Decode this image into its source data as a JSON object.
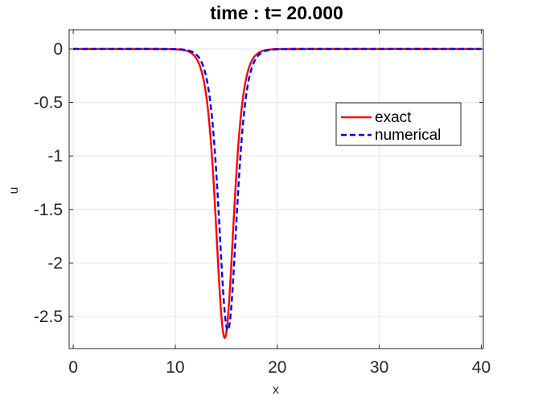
{
  "chart_data": {
    "type": "line",
    "title": "time : t= 20.000",
    "xlabel": "x",
    "ylabel": "u",
    "xlim": [
      -0.4,
      40.2
    ],
    "ylim": [
      -2.8,
      0.18
    ],
    "xticks": [
      0,
      10,
      20,
      30,
      40
    ],
    "xtick_labels": [
      "0",
      "10",
      "20",
      "30",
      "40"
    ],
    "yticks": [
      0,
      -0.5,
      -1,
      -1.5,
      -2,
      -2.5
    ],
    "ytick_labels": [
      "0",
      "-0.5",
      "-1",
      "-1.5",
      "-2",
      "-2.5"
    ],
    "grid": true,
    "legend": {
      "placement": "upper-right-inside",
      "entries": [
        "exact",
        "numerical"
      ]
    },
    "series": [
      {
        "name": "exact",
        "style": "solid",
        "color": "#ff0000",
        "amplitude": -2.7,
        "center": 14.85,
        "width_param": 1.162
      },
      {
        "name": "numerical",
        "style": "dashed",
        "color": "#0000ff",
        "amplitude": -2.63,
        "center": 15.15,
        "width_param": 1.162
      }
    ],
    "x_samples": [
      0,
      2,
      4,
      6,
      8,
      10,
      11,
      12,
      12.5,
      13,
      13.5,
      14,
      14.25,
      14.5,
      14.75,
      15,
      15.25,
      15.5,
      15.75,
      16,
      16.5,
      17,
      17.5,
      18,
      19,
      20,
      22,
      25,
      30,
      35,
      40
    ]
  }
}
